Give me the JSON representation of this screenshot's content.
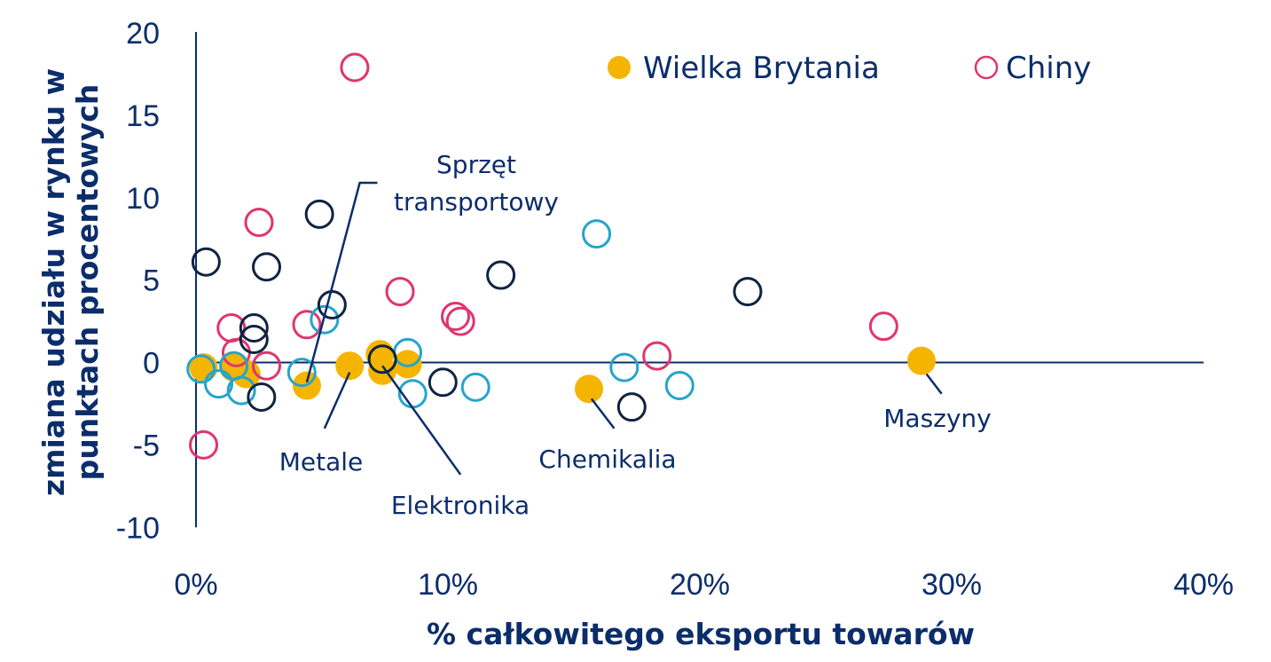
{
  "chart_data": {
    "type": "scatter",
    "title": "",
    "xlabel": "% całkowitego eksportu towarów",
    "ylabel": "zmiana udziału w rynku w punktach procentowych",
    "xlim": [
      0,
      40
    ],
    "ylim": [
      -10,
      20
    ],
    "x_ticks": [
      0,
      10,
      20,
      30,
      40
    ],
    "x_tick_labels": [
      "0%",
      "10%",
      "20%",
      "30%",
      "40%"
    ],
    "y_ticks": [
      20,
      15,
      10,
      5,
      0,
      -5,
      -10
    ],
    "y_tick_labels": [
      "20",
      "15",
      "10",
      "5",
      "0",
      "-5",
      "-10"
    ],
    "grid": false,
    "legend": {
      "placement": "top-right",
      "entries": [
        {
          "label": "Wielka Brytania",
          "series": "uk"
        },
        {
          "label": "Chiny",
          "series": "china"
        }
      ]
    },
    "series": [
      {
        "key": "uk",
        "name": "Wielka Brytania",
        "color": "#f5b400",
        "filled": true,
        "points": [
          {
            "x": 0.3,
            "y": -0.3
          },
          {
            "x": 1.5,
            "y": -0.3
          },
          {
            "x": 2.0,
            "y": -0.7
          },
          {
            "x": 4.4,
            "y": -1.4
          },
          {
            "x": 6.1,
            "y": -0.2
          },
          {
            "x": 7.3,
            "y": 0.5
          },
          {
            "x": 7.4,
            "y": -0.5
          },
          {
            "x": 8.4,
            "y": -0.1
          },
          {
            "x": 15.6,
            "y": -1.6
          },
          {
            "x": 28.8,
            "y": 0.1
          }
        ]
      },
      {
        "key": "china",
        "name": "Chiny",
        "color": "#e0356e",
        "filled": false,
        "points": [
          {
            "x": 6.3,
            "y": 17.9
          },
          {
            "x": 2.5,
            "y": 8.5
          },
          {
            "x": 8.1,
            "y": 4.3
          },
          {
            "x": 10.3,
            "y": 2.8
          },
          {
            "x": 10.5,
            "y": 2.5
          },
          {
            "x": 4.4,
            "y": 2.3
          },
          {
            "x": 1.4,
            "y": 2.1
          },
          {
            "x": 1.6,
            "y": 0.6
          },
          {
            "x": 2.8,
            "y": -0.2
          },
          {
            "x": 18.3,
            "y": 0.4
          },
          {
            "x": 27.3,
            "y": 2.2
          },
          {
            "x": 0.3,
            "y": -5.0
          }
        ]
      },
      {
        "key": "light_blue",
        "color": "#25a4cc",
        "filled": false,
        "points": [
          {
            "x": 0.2,
            "y": -0.4
          },
          {
            "x": 0.9,
            "y": -1.3
          },
          {
            "x": 1.5,
            "y": -0.2
          },
          {
            "x": 1.8,
            "y": -1.7
          },
          {
            "x": 4.2,
            "y": -0.6
          },
          {
            "x": 5.1,
            "y": 2.6
          },
          {
            "x": 8.4,
            "y": 0.6
          },
          {
            "x": 8.6,
            "y": -1.9
          },
          {
            "x": 11.1,
            "y": -1.5
          },
          {
            "x": 15.9,
            "y": 7.8
          },
          {
            "x": 17.0,
            "y": -0.3
          },
          {
            "x": 19.2,
            "y": -1.4
          }
        ]
      },
      {
        "key": "dark_blue",
        "color": "#0f2342",
        "filled": false,
        "points": [
          {
            "x": 0.4,
            "y": 6.1
          },
          {
            "x": 2.3,
            "y": 2.1
          },
          {
            "x": 2.3,
            "y": 1.4
          },
          {
            "x": 2.6,
            "y": -2.1
          },
          {
            "x": 2.8,
            "y": 5.8
          },
          {
            "x": 4.9,
            "y": 9.0
          },
          {
            "x": 5.4,
            "y": 3.5
          },
          {
            "x": 7.4,
            "y": 0.2
          },
          {
            "x": 9.8,
            "y": -1.2
          },
          {
            "x": 12.1,
            "y": 5.3
          },
          {
            "x": 17.3,
            "y": -2.7
          },
          {
            "x": 21.9,
            "y": 4.3
          }
        ]
      }
    ],
    "annotations": [
      {
        "lines": [
          "Sprzęt",
          "transportowy"
        ],
        "point": {
          "x": 4.4,
          "y": -1.2
        },
        "leader": [
          {
            "x": 4.4,
            "y": -1.2
          },
          {
            "x": 6.5,
            "y": 10.9
          },
          {
            "x": 7.2,
            "y": 10.9
          }
        ]
      },
      {
        "lines": [
          "Metale"
        ],
        "point": {
          "x": 6.1,
          "y": -0.5
        },
        "leader": [
          {
            "x": 6.1,
            "y": -0.6
          },
          {
            "x": 5.1,
            "y": -4.0
          }
        ]
      },
      {
        "lines": [
          "Elektronika"
        ],
        "point": {
          "x": 7.4,
          "y": 0.0
        },
        "leader": [
          {
            "x": 7.4,
            "y": -0.2
          },
          {
            "x": 10.5,
            "y": -6.8
          }
        ]
      },
      {
        "lines": [
          "Chemikalia"
        ],
        "point": {
          "x": 15.6,
          "y": -1.6
        },
        "leader": [
          {
            "x": 15.7,
            "y": -2.2
          },
          {
            "x": 16.6,
            "y": -4.0
          }
        ]
      },
      {
        "lines": [
          "Maszyny"
        ],
        "point": {
          "x": 28.8,
          "y": 0.1
        },
        "leader": [
          {
            "x": 29.0,
            "y": -0.7
          },
          {
            "x": 29.6,
            "y": -1.9
          }
        ]
      }
    ]
  }
}
